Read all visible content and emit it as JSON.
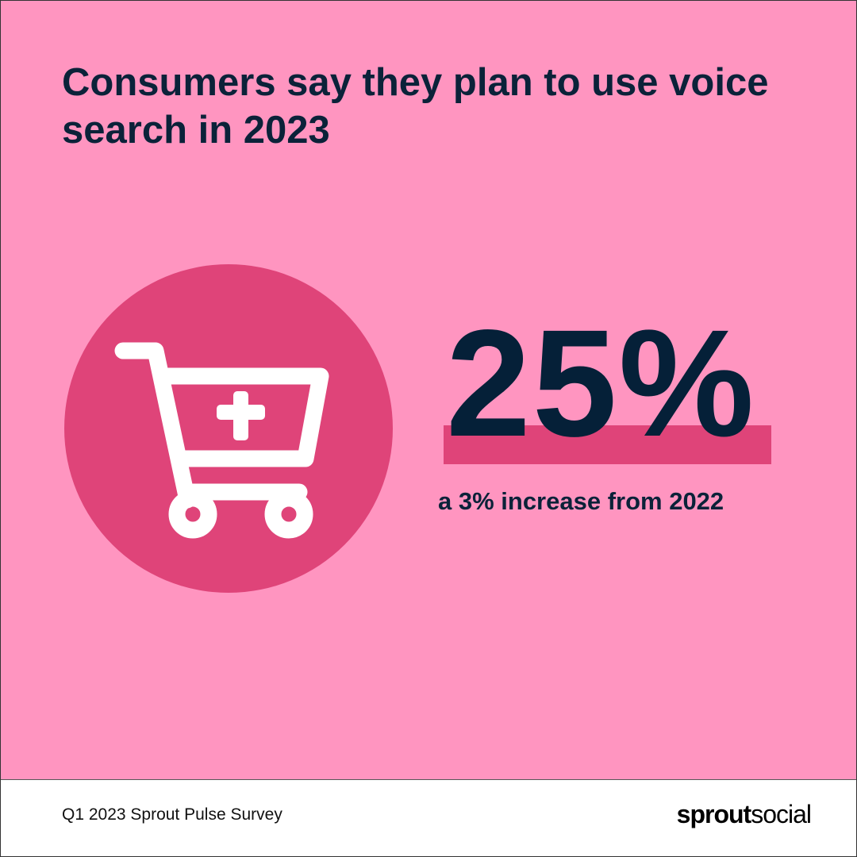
{
  "title": "Consumers say they plan to use voice search in 2023",
  "icon": "shopping-cart-add-icon",
  "stat": {
    "value": "25%",
    "caption": "a 3% increase from 2022"
  },
  "footer": {
    "source": "Q1 2023 Sprout Pulse Survey",
    "logo_bold": "sprout",
    "logo_light": "social"
  },
  "colors": {
    "background": "#FF95C0",
    "accent": "#DF4479",
    "text": "#0B2239",
    "footer_background": "#FFFFFF"
  }
}
